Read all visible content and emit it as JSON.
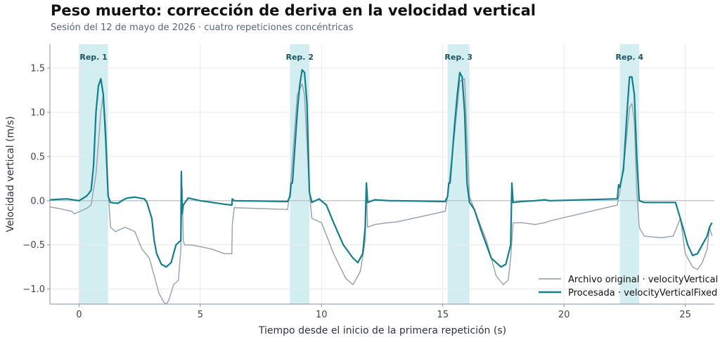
{
  "header": {
    "title": "Peso muerto: corrección de deriva en la velocidad vertical",
    "subtitle": "Sesión del 12 de mayo de 2026 · cuatro repeticiones concéntricas"
  },
  "colors": {
    "raw": "#9aa5b1",
    "fixed": "#127f8c",
    "band": "#d3eef1",
    "grid": "#e6e9ed",
    "zero_line": "#b8bfc7"
  },
  "chart_data": {
    "type": "line",
    "xlabel": "Tiempo desde el inicio de la primera repetición (s)",
    "ylabel": "Velocidad vertical (m/s)",
    "xlim": [
      -1.2,
      26.2
    ],
    "ylim": [
      -1.17,
      1.77
    ],
    "xticks": [
      0,
      5,
      10,
      15,
      20,
      25
    ],
    "yticks": [
      -1.0,
      -0.5,
      0.0,
      0.5,
      1.0,
      1.5
    ],
    "ytick_labels": [
      "−1.0",
      "−0.5",
      "0.0",
      "0.5",
      "1.0",
      "1.5"
    ],
    "grid": true,
    "legend_position": "bottom-right",
    "bands": [
      {
        "label": "Rep. 1",
        "x0": 0.0,
        "x1": 1.2
      },
      {
        "label": "Rep. 2",
        "x0": 8.7,
        "x1": 9.5
      },
      {
        "label": "Rep. 3",
        "x0": 15.2,
        "x1": 16.1
      },
      {
        "label": "Rep. 4",
        "x0": 22.3,
        "x1": 23.1
      }
    ],
    "series": [
      {
        "name": "Archivo original · velocityVertical",
        "x": [
          -1.2,
          -0.8,
          -0.3,
          -0.2,
          0.3,
          0.5,
          0.7,
          0.9,
          1.0,
          1.1,
          1.2,
          1.3,
          1.5,
          1.9,
          2.3,
          2.6,
          2.9,
          3.1,
          3.3,
          3.5,
          3.6,
          3.7,
          3.9,
          4.1,
          4.2,
          4.25,
          4.3,
          4.35,
          4.6,
          5.0,
          5.5,
          6.0,
          6.3,
          6.32,
          6.4,
          8.6,
          8.7,
          8.8,
          9.0,
          9.2,
          9.3,
          9.5,
          9.6,
          10.0,
          10.5,
          11.0,
          11.3,
          11.6,
          11.8,
          11.85,
          11.9,
          12.2,
          12.7,
          13.1,
          15.1,
          15.2,
          15.3,
          15.5,
          15.7,
          15.9,
          16.0,
          16.1,
          16.3,
          16.8,
          17.2,
          17.5,
          17.7,
          17.8,
          17.9,
          18.3,
          18.8,
          19.2,
          19.4,
          22.2,
          22.3,
          22.5,
          22.7,
          22.8,
          22.9,
          23.0,
          23.1,
          23.3,
          24.0,
          24.5,
          24.8,
          25.0,
          25.3,
          25.5,
          25.7,
          25.9,
          26.0,
          26.1
        ],
        "y": [
          -0.07,
          -0.09,
          -0.12,
          -0.15,
          -0.09,
          -0.05,
          0.3,
          1.0,
          1.2,
          0.85,
          0.1,
          -0.3,
          -0.35,
          -0.3,
          -0.35,
          -0.55,
          -0.65,
          -0.85,
          -1.05,
          -1.15,
          -1.17,
          -1.13,
          -0.95,
          -0.9,
          -0.55,
          0.15,
          -0.45,
          -0.5,
          -0.5,
          -0.52,
          -0.55,
          -0.6,
          -0.6,
          -0.27,
          -0.08,
          -0.1,
          0.1,
          0.45,
          1.2,
          1.32,
          1.2,
          0.1,
          -0.2,
          -0.25,
          -0.6,
          -0.88,
          -0.95,
          -0.8,
          -0.45,
          0.15,
          -0.3,
          -0.27,
          -0.25,
          -0.24,
          -0.12,
          0.05,
          0.3,
          0.8,
          1.35,
          1.38,
          0.7,
          0.05,
          -0.1,
          -0.45,
          -0.85,
          -0.95,
          -0.9,
          -0.65,
          -0.25,
          -0.25,
          -0.27,
          -0.25,
          -0.23,
          -0.05,
          0.1,
          0.5,
          1.05,
          1.1,
          0.9,
          0.1,
          -0.3,
          -0.4,
          -0.42,
          -0.4,
          -0.2,
          -0.6,
          -0.75,
          -0.78,
          -0.7,
          -0.55,
          -0.3,
          -0.4
        ]
      },
      {
        "name": "Procesada · velocityVerticalFixed",
        "x": [
          -1.2,
          -0.5,
          0.0,
          0.3,
          0.4,
          0.5,
          0.6,
          0.7,
          0.8,
          0.9,
          1.0,
          1.1,
          1.2,
          1.3,
          1.6,
          1.9,
          2.0,
          2.3,
          2.7,
          2.8,
          3.0,
          3.1,
          3.2,
          3.4,
          3.6,
          3.8,
          4.0,
          4.2,
          4.22,
          4.25,
          4.3,
          4.5,
          5.0,
          5.5,
          6.0,
          6.3,
          6.32,
          6.4,
          8.6,
          8.7,
          8.75,
          8.8,
          9.0,
          9.1,
          9.2,
          9.3,
          9.4,
          9.5,
          9.6,
          9.9,
          10.2,
          10.5,
          10.9,
          11.3,
          11.5,
          11.7,
          11.8,
          11.85,
          11.9,
          12.2,
          12.8,
          13.1,
          15.1,
          15.2,
          15.25,
          15.3,
          15.5,
          15.6,
          15.7,
          15.8,
          15.9,
          16.0,
          16.1,
          16.3,
          16.6,
          17.0,
          17.4,
          17.6,
          17.8,
          17.85,
          17.9,
          18.2,
          18.8,
          19.2,
          19.4,
          22.2,
          22.25,
          22.3,
          22.45,
          22.6,
          22.7,
          22.8,
          22.9,
          23.0,
          23.1,
          23.3,
          24.0,
          24.6,
          24.9,
          25.1,
          25.3,
          25.5,
          25.7,
          25.9,
          26.0,
          26.1
        ],
        "y": [
          0.01,
          0.02,
          0.0,
          0.05,
          0.08,
          0.12,
          0.4,
          1.0,
          1.3,
          1.38,
          1.2,
          0.7,
          0.05,
          -0.02,
          -0.03,
          0.02,
          0.03,
          0.04,
          0.02,
          -0.02,
          -0.2,
          -0.45,
          -0.6,
          -0.72,
          -0.75,
          -0.7,
          -0.5,
          -0.45,
          0.33,
          -0.15,
          -0.05,
          0.03,
          0.0,
          -0.02,
          -0.04,
          -0.05,
          0.02,
          0.0,
          -0.01,
          0.05,
          0.2,
          0.2,
          1.0,
          1.3,
          1.48,
          1.45,
          1.1,
          0.1,
          -0.02,
          0.02,
          -0.05,
          -0.25,
          -0.5,
          -0.65,
          -0.7,
          -0.6,
          -0.3,
          0.2,
          -0.02,
          0.01,
          0.0,
          0.0,
          -0.01,
          0.05,
          0.2,
          0.2,
          0.9,
          1.2,
          1.45,
          1.4,
          1.0,
          0.2,
          -0.02,
          -0.1,
          -0.35,
          -0.65,
          -0.75,
          -0.72,
          -0.5,
          0.2,
          -0.02,
          -0.01,
          0.0,
          0.01,
          0.0,
          0.02,
          0.18,
          0.15,
          0.35,
          1.0,
          1.4,
          1.4,
          1.2,
          0.5,
          0.0,
          -0.02,
          -0.02,
          -0.02,
          -0.3,
          -0.5,
          -0.62,
          -0.6,
          -0.5,
          -0.4,
          -0.3,
          -0.25
        ]
      }
    ]
  }
}
